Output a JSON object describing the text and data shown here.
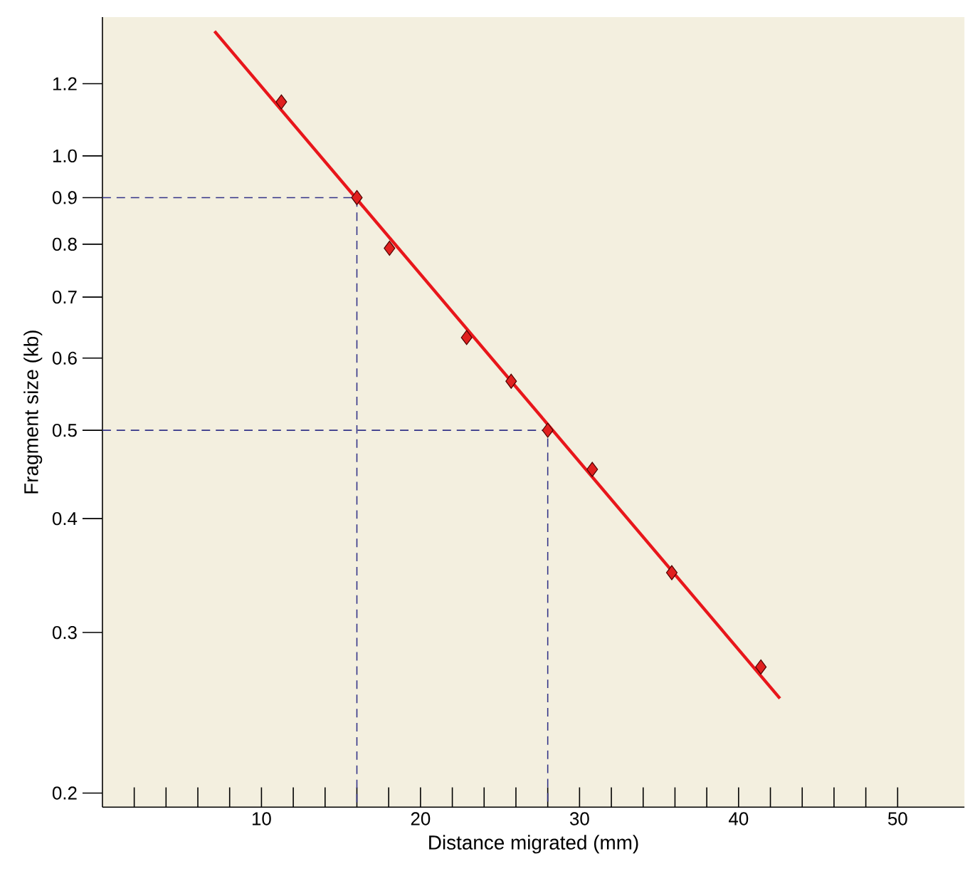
{
  "chart_data": {
    "type": "scatter",
    "xlabel": "Distance migrated (mm)",
    "ylabel": "Fragment size (kb)",
    "log": "y",
    "xlim": [
      0,
      54.2
    ],
    "ylim": [
      0.193,
      1.42
    ],
    "xticks": [
      {
        "value": 2,
        "label": null
      },
      {
        "value": 4,
        "label": null
      },
      {
        "value": 6,
        "label": null
      },
      {
        "value": 8,
        "label": null
      },
      10,
      {
        "value": 12,
        "label": null
      },
      {
        "value": 14,
        "label": null
      },
      {
        "value": 16,
        "label": null
      },
      {
        "value": 18,
        "label": null
      },
      20,
      {
        "value": 22,
        "label": null
      },
      {
        "value": 24,
        "label": null
      },
      {
        "value": 26,
        "label": null
      },
      {
        "value": 28,
        "label": null
      },
      30,
      {
        "value": 32,
        "label": null
      },
      {
        "value": 34,
        "label": null
      },
      {
        "value": 36,
        "label": null
      },
      {
        "value": 38,
        "label": null
      },
      40,
      {
        "value": 42,
        "label": null
      },
      {
        "value": 44,
        "label": null
      },
      {
        "value": 46,
        "label": null
      },
      {
        "value": 48,
        "label": null
      },
      50
    ],
    "yticks": [
      0.2,
      0.3,
      0.4,
      0.5,
      0.6,
      0.7,
      0.8,
      0.9,
      {
        "value": 1,
        "label": "1.0"
      },
      1.2
    ],
    "grid": false,
    "series": [
      {
        "type": "line",
        "color": "#333388",
        "line_style": "dashed",
        "x": [
          0,
          16,
          16
        ],
        "values": [
          0.9,
          0.9,
          0.193
        ]
      },
      {
        "type": "line",
        "color": "#333388",
        "line_style": "dashed",
        "x": [
          0,
          28,
          28
        ],
        "values": [
          0.5,
          0.5,
          0.193
        ]
      },
      {
        "type": "line",
        "color": "#e8161b",
        "line_style": "solid",
        "x": [
          7.05,
          42.6
        ],
        "values": [
          1.37,
          0.254
        ]
      },
      {
        "color": "#e0201f",
        "marker": "diamond",
        "x": [
          11.25,
          16,
          18.05,
          22.9,
          25.7,
          28,
          30.8,
          35.8,
          41.4
        ],
        "values": [
          1.146,
          0.9,
          0.792,
          0.632,
          0.566,
          0.5,
          0.453,
          0.349,
          0.275
        ]
      }
    ]
  }
}
